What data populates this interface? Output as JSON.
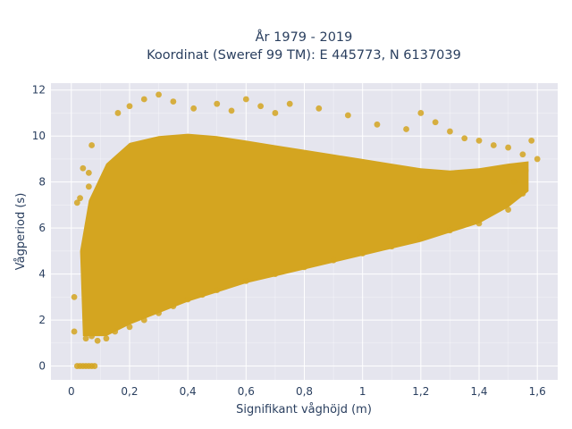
{
  "chart_data": {
    "type": "scatter",
    "title_lines": [
      "År 1979 - 2019",
      "Koordinat (Sweref 99 TM): E 445773, N 6137039"
    ],
    "xlabel": "Signifikant våghöjd (m)",
    "ylabel": "Vågperiod (s)",
    "xlim": [
      -0.07,
      1.67
    ],
    "ylim": [
      -0.6,
      12.3
    ],
    "xticks": [
      0,
      0.2,
      0.4,
      0.6,
      0.8,
      1,
      1.2,
      1.4,
      1.6
    ],
    "xtick_labels": [
      "0",
      "0,2",
      "0,4",
      "0,6",
      "0,8",
      "1",
      "1,2",
      "1,4",
      "1,6"
    ],
    "yticks": [
      0,
      2,
      4,
      6,
      8,
      10,
      12
    ],
    "ytick_labels": [
      "0",
      "2",
      "4",
      "6",
      "8",
      "10",
      "12"
    ],
    "grid": true,
    "marker_color": "#D4A520",
    "plot_background": "#E5E5EE",
    "series": [
      {
        "points": [
          [
            0.02,
            0
          ],
          [
            0.03,
            0
          ],
          [
            0.04,
            0
          ],
          [
            0.05,
            0
          ],
          [
            0.06,
            0
          ],
          [
            0.07,
            0
          ],
          [
            0.08,
            0
          ],
          [
            0.01,
            1.5
          ],
          [
            0.01,
            3.0
          ],
          [
            0.02,
            7.1
          ],
          [
            0.03,
            7.3
          ],
          [
            0.04,
            8.6
          ],
          [
            0.06,
            8.4
          ],
          [
            0.07,
            9.6
          ],
          [
            0.06,
            7.8
          ],
          [
            0.05,
            1.2
          ],
          [
            0.07,
            1.3
          ],
          [
            0.09,
            1.1
          ],
          [
            0.12,
            1.2
          ],
          [
            0.15,
            1.5
          ],
          [
            0.2,
            1.7
          ],
          [
            0.25,
            2.0
          ],
          [
            0.3,
            2.3
          ],
          [
            0.35,
            2.6
          ],
          [
            0.4,
            2.9
          ],
          [
            0.45,
            3.1
          ],
          [
            0.5,
            3.3
          ],
          [
            0.6,
            3.7
          ],
          [
            0.7,
            4.0
          ],
          [
            0.8,
            4.3
          ],
          [
            0.9,
            4.6
          ],
          [
            1.0,
            4.9
          ],
          [
            1.1,
            5.2
          ],
          [
            1.2,
            5.6
          ],
          [
            1.3,
            5.9
          ],
          [
            1.4,
            6.2
          ],
          [
            1.5,
            6.8
          ],
          [
            1.55,
            7.5
          ],
          [
            0.16,
            11.0
          ],
          [
            0.2,
            11.3
          ],
          [
            0.25,
            11.6
          ],
          [
            0.3,
            11.8
          ],
          [
            0.35,
            11.5
          ],
          [
            0.42,
            11.2
          ],
          [
            0.5,
            11.4
          ],
          [
            0.55,
            11.1
          ],
          [
            0.6,
            11.6
          ],
          [
            0.65,
            11.3
          ],
          [
            0.7,
            11.0
          ],
          [
            0.75,
            11.4
          ],
          [
            0.85,
            11.2
          ],
          [
            0.95,
            10.9
          ],
          [
            1.05,
            10.5
          ],
          [
            1.15,
            10.3
          ],
          [
            1.2,
            11.0
          ],
          [
            1.25,
            10.6
          ],
          [
            1.3,
            10.2
          ],
          [
            1.35,
            9.9
          ],
          [
            1.4,
            9.8
          ],
          [
            1.45,
            9.6
          ],
          [
            1.5,
            9.5
          ],
          [
            1.55,
            9.2
          ],
          [
            1.58,
            9.8
          ],
          [
            1.6,
            9.0
          ],
          [
            1.56,
            8.5
          ],
          [
            1.52,
            8.0
          ]
        ]
      }
    ]
  }
}
